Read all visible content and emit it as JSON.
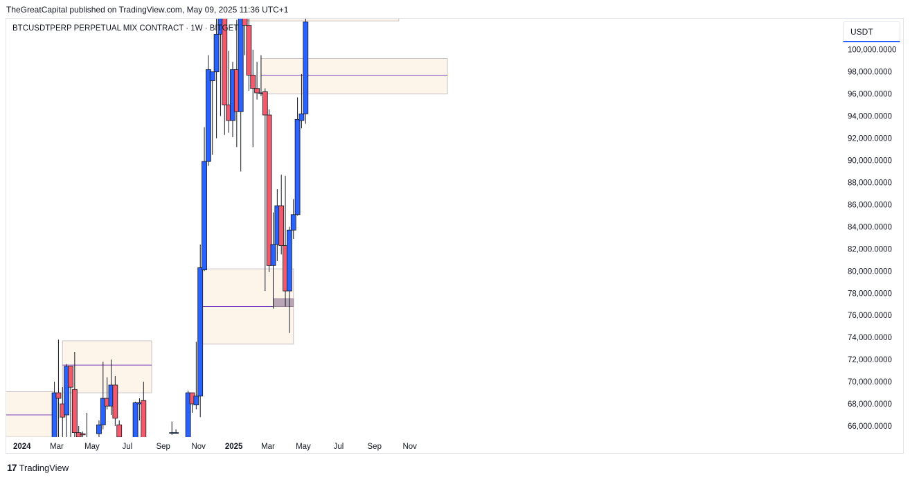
{
  "header": {
    "publish_line": "TheGreatCapital published on TradingView.com, May 09, 2025 11:36 UTC+1",
    "symbol_line": "BTCUSDTPERP PERPETUAL MIX CONTRACT · 1W · BITGET"
  },
  "price_scale": {
    "currency": "USDT",
    "ticks": [
      "100,000.0000",
      "98,000.0000",
      "96,000.0000",
      "94,000.0000",
      "92,000.0000",
      "90,000.0000",
      "88,000.0000",
      "86,000.0000",
      "84,000.0000",
      "82,000.0000",
      "80,000.0000",
      "78,000.0000",
      "76,000.0000",
      "74,000.0000",
      "72,000.0000",
      "70,000.0000",
      "68,000.0000",
      "66,000.0000"
    ]
  },
  "footer": {
    "brand_mark": "17",
    "brand": "TradingView"
  },
  "colors": {
    "up": "#2962ff",
    "down": "#f05a6b",
    "zone_fill": "#fdf5ea",
    "zone_line": "#7b3fbf",
    "wick": "#131722"
  },
  "chart_data": {
    "type": "candlestick",
    "interval": "1W",
    "y_range": [
      65000,
      102800
    ],
    "x_axis_labels": [
      {
        "label": "2024",
        "date": "2024-01-01",
        "bold": true
      },
      {
        "label": "Mar",
        "date": "2024-03-01"
      },
      {
        "label": "May",
        "date": "2024-05-01"
      },
      {
        "label": "Jul",
        "date": "2024-07-01"
      },
      {
        "label": "Sep",
        "date": "2024-09-01"
      },
      {
        "label": "Nov",
        "date": "2024-11-01"
      },
      {
        "label": "2025",
        "date": "2025-01-01",
        "bold": true
      },
      {
        "label": "Mar",
        "date": "2025-03-01"
      },
      {
        "label": "May",
        "date": "2025-05-01"
      },
      {
        "label": "Jul",
        "date": "2025-07-01"
      },
      {
        "label": "Sep",
        "date": "2025-09-01"
      },
      {
        "label": "Nov",
        "date": "2025-11-01"
      }
    ],
    "candles": [
      {
        "date": "2024-02-26",
        "o": 63000,
        "h": 70000,
        "l": 63000,
        "c": 69000
      },
      {
        "date": "2024-03-04",
        "o": 69000,
        "h": 73800,
        "l": 63000,
        "c": 68500
      },
      {
        "date": "2024-03-11",
        "o": 68000,
        "h": 69500,
        "l": 64000,
        "c": 66800
      },
      {
        "date": "2024-03-18",
        "o": 67000,
        "h": 71600,
        "l": 64000,
        "c": 71400
      },
      {
        "date": "2024-03-25",
        "o": 71400,
        "h": 71400,
        "l": 64000,
        "c": 69500
      },
      {
        "date": "2024-04-01",
        "o": 69300,
        "h": 72700,
        "l": 64000,
        "c": 65400
      },
      {
        "date": "2024-04-08",
        "o": 65400,
        "h": 66000,
        "l": 64000,
        "c": 65000
      },
      {
        "date": "2024-04-15",
        "o": 65300,
        "h": 65500,
        "l": 64500,
        "c": 65200
      },
      {
        "date": "2024-04-22",
        "o": 64000,
        "h": 67200,
        "l": 63500,
        "c": 64000
      },
      {
        "date": "2024-05-13",
        "o": 65300,
        "h": 66500,
        "l": 64000,
        "c": 66100
      },
      {
        "date": "2024-05-20",
        "o": 66100,
        "h": 71800,
        "l": 65700,
        "c": 68500
      },
      {
        "date": "2024-05-27",
        "o": 68500,
        "h": 70400,
        "l": 67500,
        "c": 67800
      },
      {
        "date": "2024-06-03",
        "o": 67800,
        "h": 72000,
        "l": 67000,
        "c": 69700
      },
      {
        "date": "2024-06-10",
        "o": 69700,
        "h": 70500,
        "l": 66000,
        "c": 66700
      },
      {
        "date": "2024-06-17",
        "o": 66100,
        "h": 66500,
        "l": 64000,
        "c": 65000
      },
      {
        "date": "2024-07-15",
        "o": 64000,
        "h": 68200,
        "l": 63500,
        "c": 68100
      },
      {
        "date": "2024-07-22",
        "o": 68000,
        "h": 68500,
        "l": 66500,
        "c": 68100
      },
      {
        "date": "2024-07-29",
        "o": 68300,
        "h": 70000,
        "l": 63000,
        "c": 64000
      },
      {
        "date": "2024-09-16",
        "o": 65400,
        "h": 66400,
        "l": 65200,
        "c": 65400
      },
      {
        "date": "2024-09-23",
        "o": 65400,
        "h": 65700,
        "l": 65300,
        "c": 65400
      },
      {
        "date": "2024-10-14",
        "o": 63000,
        "h": 69200,
        "l": 62500,
        "c": 69000
      },
      {
        "date": "2024-10-21",
        "o": 69000,
        "h": 69000,
        "l": 67200,
        "c": 68000
      },
      {
        "date": "2024-10-28",
        "o": 67900,
        "h": 73600,
        "l": 67500,
        "c": 68700
      },
      {
        "date": "2024-11-04",
        "o": 68700,
        "h": 82400,
        "l": 66800,
        "c": 80300
      },
      {
        "date": "2024-11-11",
        "o": 80100,
        "h": 93000,
        "l": 80000,
        "c": 89900
      },
      {
        "date": "2024-11-18",
        "o": 89900,
        "h": 99500,
        "l": 89500,
        "c": 98200
      },
      {
        "date": "2024-11-25",
        "o": 97200,
        "h": 98000,
        "l": 90500,
        "c": 98000
      },
      {
        "date": "2024-12-02",
        "o": 98000,
        "h": 103500,
        "l": 92000,
        "c": 101400
      },
      {
        "date": "2024-12-09",
        "o": 101400,
        "h": 106000,
        "l": 94000,
        "c": 106000
      },
      {
        "date": "2024-12-16",
        "o": 106000,
        "h": 108000,
        "l": 92300,
        "c": 95000
      },
      {
        "date": "2024-12-23",
        "o": 95000,
        "h": 99900,
        "l": 92500,
        "c": 93600
      },
      {
        "date": "2024-12-30",
        "o": 93600,
        "h": 98900,
        "l": 92100,
        "c": 98200
      },
      {
        "date": "2025-01-06",
        "o": 98200,
        "h": 102700,
        "l": 91200,
        "c": 94400
      },
      {
        "date": "2025-01-13",
        "o": 94400,
        "h": 106000,
        "l": 89000,
        "c": 104400
      },
      {
        "date": "2025-01-20",
        "o": 104400,
        "h": 109000,
        "l": 99500,
        "c": 102200
      },
      {
        "date": "2025-01-27",
        "o": 102200,
        "h": 106500,
        "l": 96300,
        "c": 97700
      },
      {
        "date": "2025-02-03",
        "o": 97700,
        "h": 100000,
        "l": 91200,
        "c": 96500
      },
      {
        "date": "2025-02-10",
        "o": 96500,
        "h": 98900,
        "l": 95500,
        "c": 96100
      },
      {
        "date": "2025-02-17",
        "o": 96100,
        "h": 99500,
        "l": 95800,
        "c": 96100
      },
      {
        "date": "2025-02-24",
        "o": 96200,
        "h": 96500,
        "l": 78200,
        "c": 94100
      },
      {
        "date": "2025-03-03",
        "o": 94100,
        "h": 94600,
        "l": 79900,
        "c": 80500
      },
      {
        "date": "2025-03-10",
        "o": 80500,
        "h": 85300,
        "l": 76600,
        "c": 82400
      },
      {
        "date": "2025-03-17",
        "o": 82400,
        "h": 87400,
        "l": 80900,
        "c": 85900
      },
      {
        "date": "2025-03-24",
        "o": 85900,
        "h": 88700,
        "l": 81500,
        "c": 82300
      },
      {
        "date": "2025-03-31",
        "o": 82300,
        "h": 88600,
        "l": 76800,
        "c": 78200
      },
      {
        "date": "2025-04-07",
        "o": 78200,
        "h": 84000,
        "l": 74400,
        "c": 83700
      },
      {
        "date": "2025-04-14",
        "o": 83700,
        "h": 86500,
        "l": 82900,
        "c": 85100
      },
      {
        "date": "2025-04-21",
        "o": 85100,
        "h": 95700,
        "l": 85000,
        "c": 93700
      },
      {
        "date": "2025-04-28",
        "o": 93600,
        "h": 97800,
        "l": 92900,
        "c": 94200
      },
      {
        "date": "2025-05-05",
        "o": 94200,
        "h": 104100,
        "l": 93300,
        "c": 102500
      }
    ],
    "zones": [
      {
        "from": "2025-01-13",
        "to": "2025-10-13",
        "high": 103900,
        "low": 102600,
        "mid": null
      },
      {
        "from": "2025-02-17",
        "to": "2026-01-05",
        "high": 99200,
        "low": 96000,
        "mid": 97700
      },
      {
        "from": "2024-11-04",
        "to": "2025-04-14",
        "high": 80200,
        "low": 73400,
        "mid": 76800
      },
      {
        "from": "2024-03-11",
        "to": "2024-08-12",
        "high": 73700,
        "low": 69000,
        "mid": 71500
      },
      {
        "from": "2023-12-04",
        "to": "2024-02-26",
        "high": 69100,
        "low": 65000,
        "mid": 67000
      }
    ],
    "small_box": {
      "from": "2025-03-10",
      "to": "2025-04-14",
      "high": 77500,
      "low": 76800
    }
  }
}
